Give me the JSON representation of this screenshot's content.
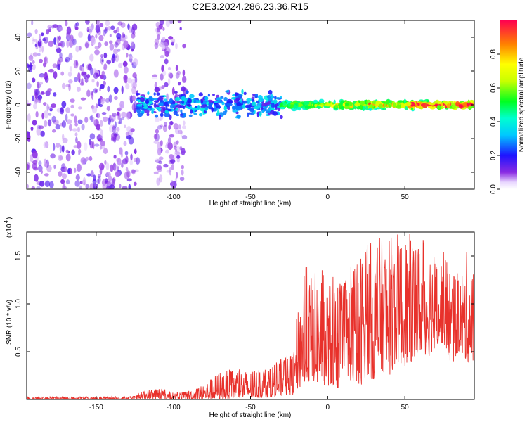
{
  "title": "C2E3.2024.286.23.36.R15",
  "chart_data": [
    {
      "type": "heatmap",
      "xlabel": "Height of straight line (km)",
      "ylabel": "Frequency (Hz)",
      "xlim": [
        -195,
        95
      ],
      "ylim": [
        -50,
        50
      ],
      "xticks": [
        -150,
        -100,
        -50,
        0,
        50
      ],
      "yticks": [
        -40,
        -20,
        0,
        20,
        40
      ],
      "colorbar": {
        "label": "Normalized spectral amplitude",
        "range": [
          0,
          1
        ],
        "ticks": [
          0.0,
          0.2,
          0.4,
          0.6,
          0.8
        ],
        "tick_labels": [
          "0.0",
          "0.2",
          "0.4",
          "0.6",
          "0.8"
        ]
      },
      "regions": [
        {
          "x_range": [
            -195,
            -123
          ],
          "freq_range": [
            -50,
            50
          ],
          "amplitude": 0.12,
          "pattern": "broadband noise"
        },
        {
          "x_range": [
            -112,
            -92
          ],
          "freq_range": [
            -50,
            50
          ],
          "amplitude": 0.1,
          "pattern": "broadband noise"
        },
        {
          "x_range": [
            -123,
            -30
          ],
          "freq_range": [
            -10,
            10
          ],
          "amplitude": 0.3,
          "pattern": "narrow band around 0 Hz"
        },
        {
          "x_range": [
            -30,
            95
          ],
          "freq_range": [
            -3,
            3
          ],
          "amplitude": 0.85,
          "pattern": "narrow band around 0 Hz, strongest 30 to 90 km"
        }
      ]
    },
    {
      "type": "line",
      "xlabel": "Height of straight line (km)",
      "ylabel": "SNR (10 * v/v)",
      "y_multiplier": "(x10",
      "y_multiplier_exp": "4",
      "xlim": [
        -195,
        95
      ],
      "ylim": [
        0,
        17500
      ],
      "xticks": [
        -150,
        -100,
        -50,
        0,
        50
      ],
      "yticks": [
        5000,
        10000,
        15000
      ],
      "ytick_labels": [
        "0.5",
        "1.0",
        "1.5"
      ],
      "color": "#e8312b",
      "envelope": {
        "x": [
          -195,
          -150,
          -125,
          -120,
          -110,
          -100,
          -90,
          -80,
          -75,
          -70,
          -60,
          -50,
          -40,
          -30,
          -22,
          -20,
          -15,
          -10,
          -5,
          0,
          5,
          10,
          15,
          20,
          25,
          30,
          35,
          40,
          45,
          50,
          55,
          60,
          65,
          70,
          75,
          80,
          85,
          90,
          95
        ],
        "low": [
          0,
          0,
          0,
          0,
          0,
          0,
          0,
          0,
          0,
          0,
          100,
          100,
          200,
          300,
          500,
          1000,
          1500,
          2000,
          1500,
          1500,
          1000,
          1500,
          2000,
          1000,
          2500,
          2000,
          3000,
          2500,
          4000,
          3500,
          4000,
          5000,
          4500,
          5500,
          6000,
          3500,
          5000,
          4000,
          3500
        ],
        "high": [
          300,
          300,
          350,
          800,
          1400,
          700,
          1000,
          1600,
          2300,
          3000,
          3200,
          3000,
          3400,
          4300,
          5000,
          8800,
          14500,
          13000,
          14000,
          12500,
          13000,
          12000,
          14000,
          15000,
          17500,
          16000,
          17500,
          17000,
          17500,
          17000,
          17500,
          16500,
          17500,
          15000,
          15500,
          14000,
          13000,
          15500,
          13000
        ]
      }
    }
  ]
}
